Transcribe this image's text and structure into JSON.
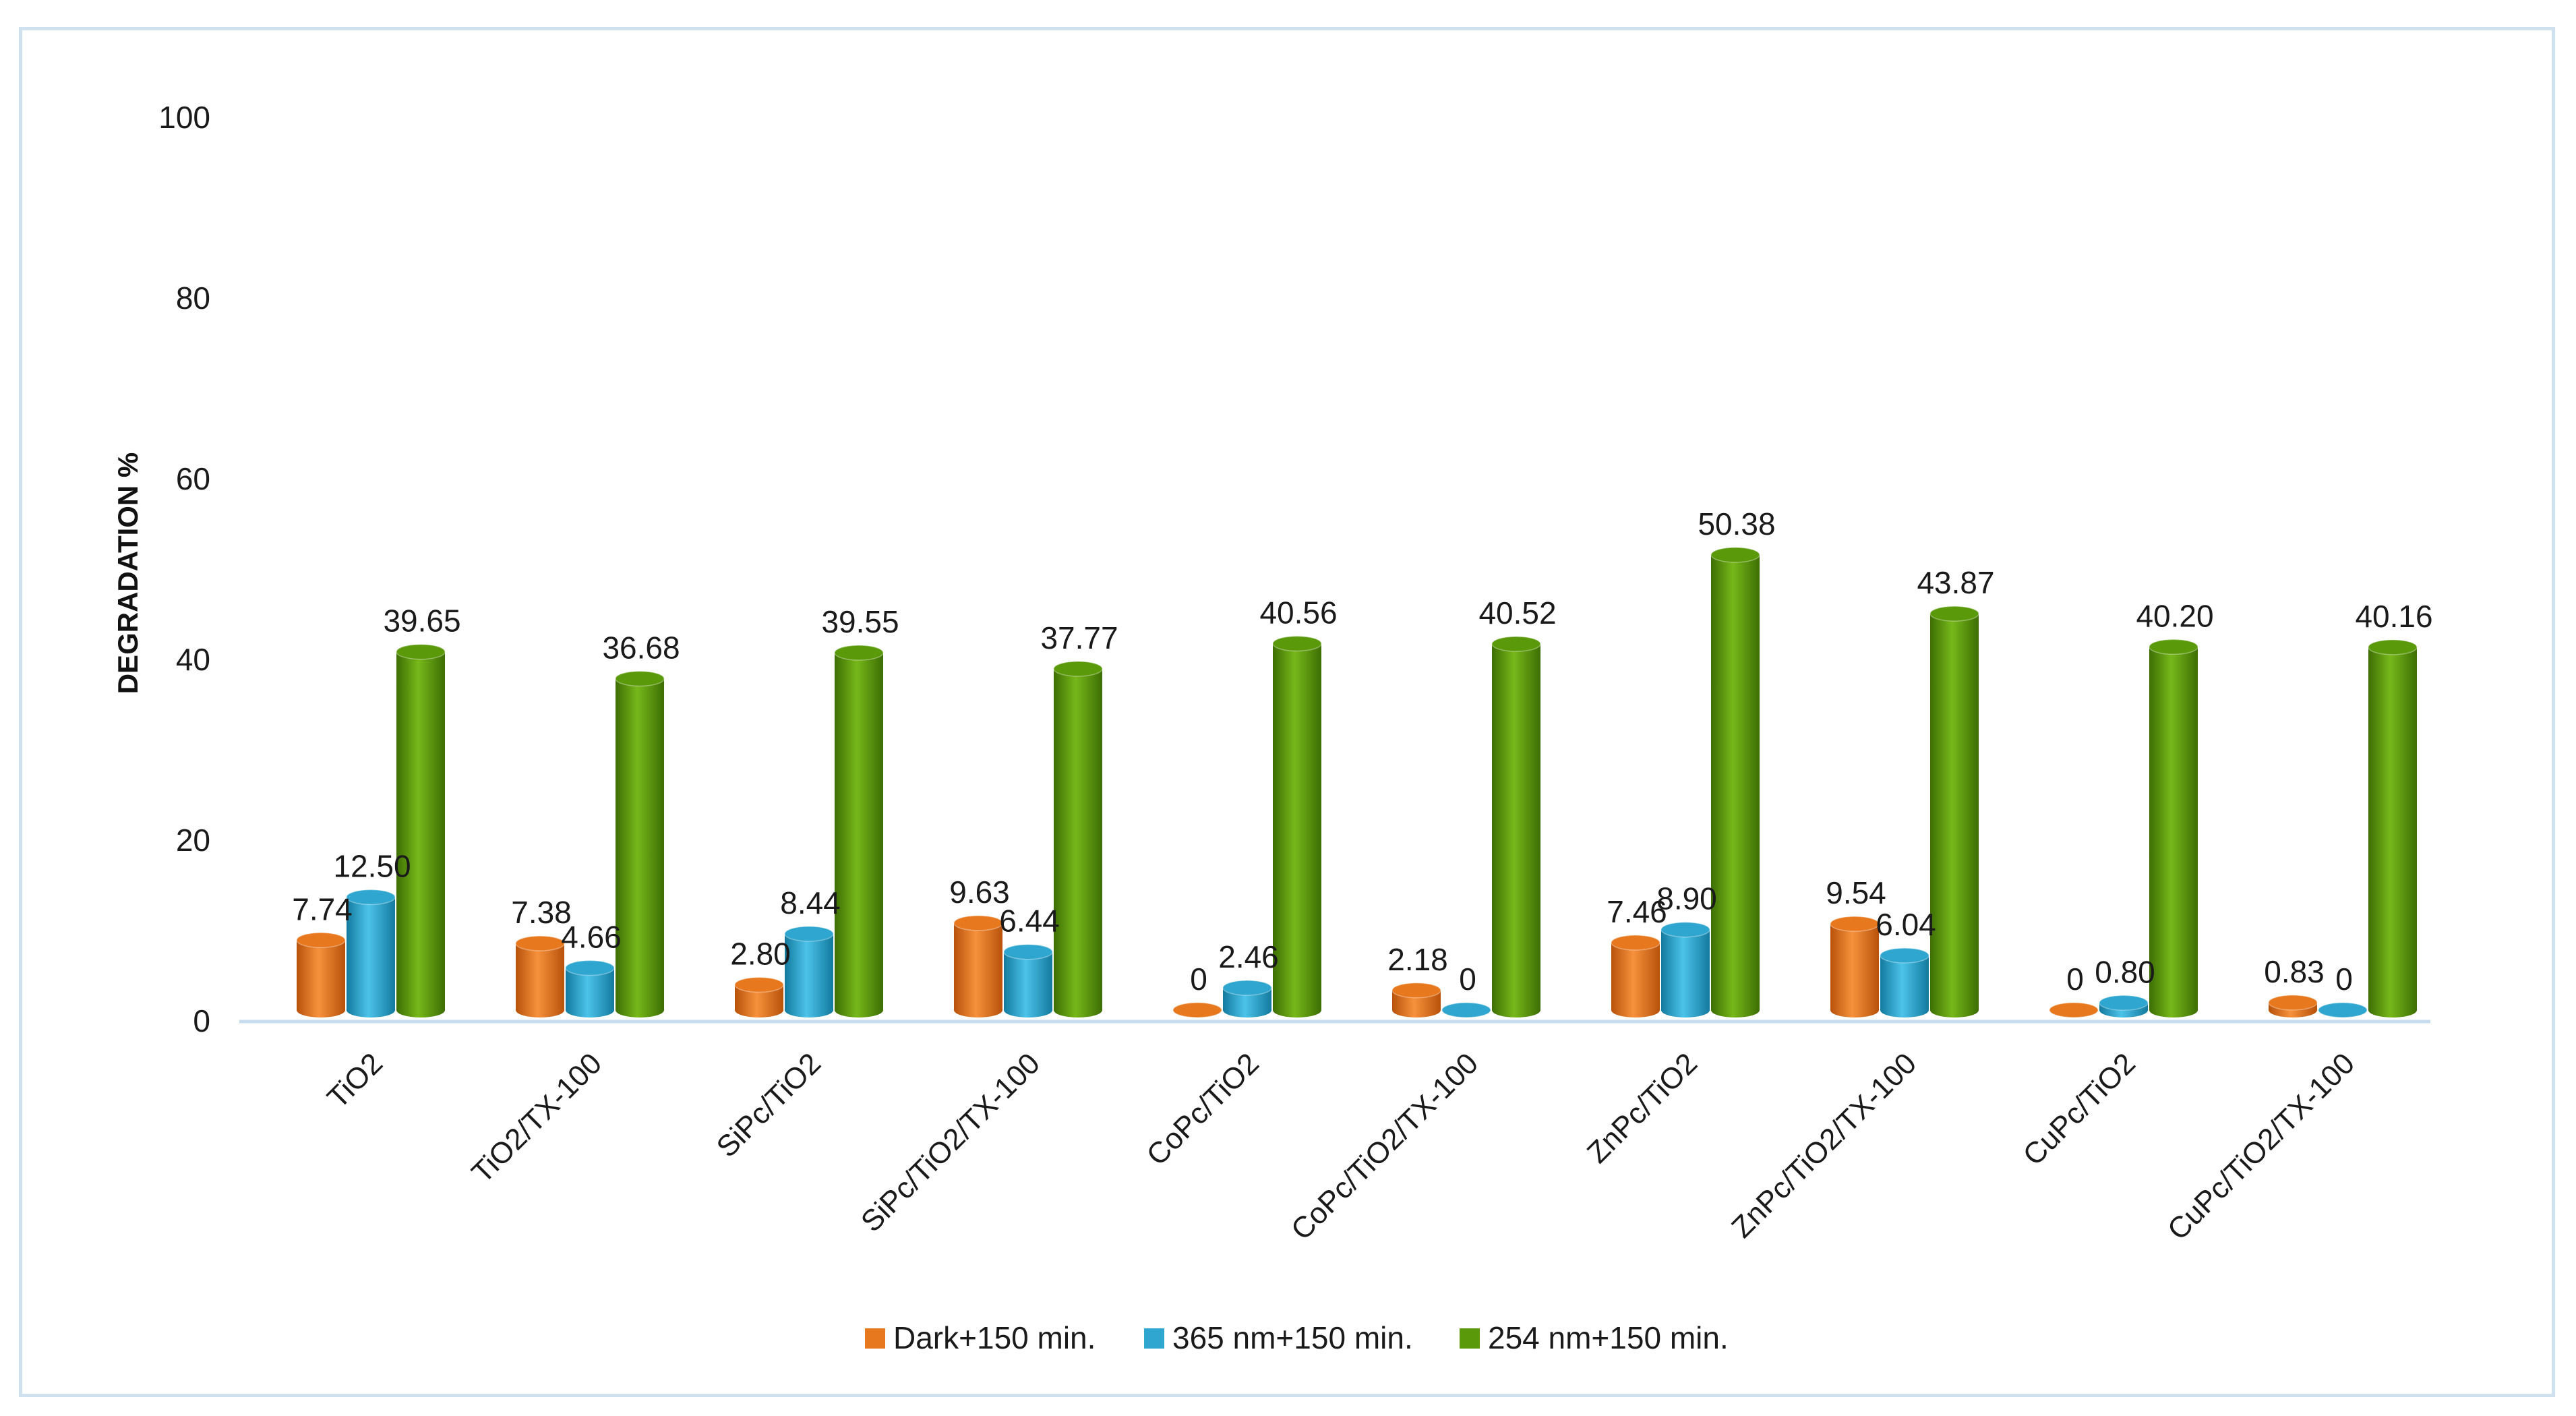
{
  "chart_data": {
    "type": "bar",
    "title": "",
    "xlabel": "",
    "ylabel": "DEGRADATION %",
    "ylim": [
      0,
      100
    ],
    "yticks": [
      "0",
      "20",
      "40",
      "60",
      "80",
      "100"
    ],
    "legend_position": "bottom",
    "categories": [
      "TiO2",
      "TiO2/TX-100",
      "SiPc/TiO2",
      "SiPc/TiO2/TX-100",
      "CoPc/TiO2",
      "CoPc/TiO2/TX-100",
      "ZnPc/TiO2",
      "ZnPc/TiO2/TX-100",
      "CuPc/TiO2",
      "CuPc/TiO2/TX-100"
    ],
    "series": [
      {
        "name": "Dark+150 min.",
        "color": "#e8781e",
        "values": [
          7.74,
          7.38,
          2.8,
          9.63,
          0,
          2.18,
          7.46,
          9.54,
          0,
          0.83
        ],
        "labels": [
          "7.74",
          "7.38",
          "2.80",
          "9.63",
          "0",
          "2.18",
          "7.46",
          "9.54",
          "0",
          "0.83"
        ]
      },
      {
        "name": "365 nm+150 min.",
        "color": "#2ea6cf",
        "values": [
          12.5,
          4.66,
          8.44,
          6.44,
          2.46,
          0,
          8.9,
          6.04,
          0.8,
          0
        ],
        "labels": [
          "12.50",
          "4.66",
          "8.44",
          "6.44",
          "2.46",
          "0",
          "8.90",
          "6.04",
          "0.80",
          "0"
        ]
      },
      {
        "name": "254 nm+150 min.",
        "color": "#5a9a0a",
        "values": [
          39.65,
          36.68,
          39.55,
          37.77,
          40.56,
          40.52,
          50.38,
          43.87,
          40.2,
          40.16
        ],
        "labels": [
          "39.65",
          "36.68",
          "39.55",
          "37.77",
          "40.56",
          "40.52",
          "50.38",
          "43.87",
          "40.20",
          "40.16"
        ]
      }
    ]
  }
}
